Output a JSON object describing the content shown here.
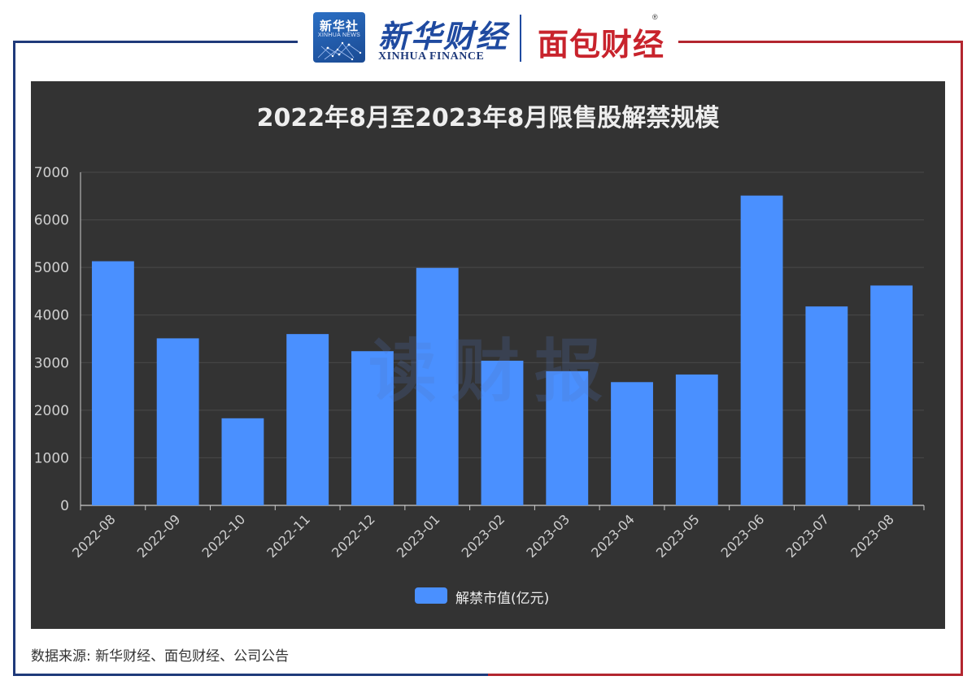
{
  "header": {
    "xinhua_badge_name": "新华社",
    "xinhua_badge_sub": "XINHUA NEWS",
    "xinhua_finance_cn": "新华财经",
    "xinhua_finance_en": "XINHUA FINANCE",
    "mianbao_logo": "面包财经",
    "registered_mark": "®"
  },
  "watermark": "读财报",
  "colors": {
    "bar": "#4a90ff",
    "chart_bg": "#333333",
    "frame_left": "#1f3a7a",
    "frame_right": "#b3262f"
  },
  "source": "数据来源: 新华财经、面包财经、公司公告",
  "chart_data": {
    "type": "bar",
    "title": "2022年8月至2023年8月限售股解禁规模",
    "categories": [
      "2022-08",
      "2022-09",
      "2022-10",
      "2022-11",
      "2022-12",
      "2023-01",
      "2023-02",
      "2023-03",
      "2023-04",
      "2023-05",
      "2023-06",
      "2023-07",
      "2023-08"
    ],
    "series": [
      {
        "name": "解禁市值(亿元)",
        "values": [
          5130,
          3510,
          1830,
          3600,
          3240,
          4990,
          3040,
          2820,
          2590,
          2750,
          6510,
          4180,
          4620
        ]
      }
    ],
    "y_ticks": [
      "0",
      "1000",
      "2000",
      "3000",
      "4000",
      "5000",
      "6000",
      "7000"
    ],
    "ylim": [
      0,
      7000
    ],
    "grid": true,
    "legend": "bottom-center"
  }
}
